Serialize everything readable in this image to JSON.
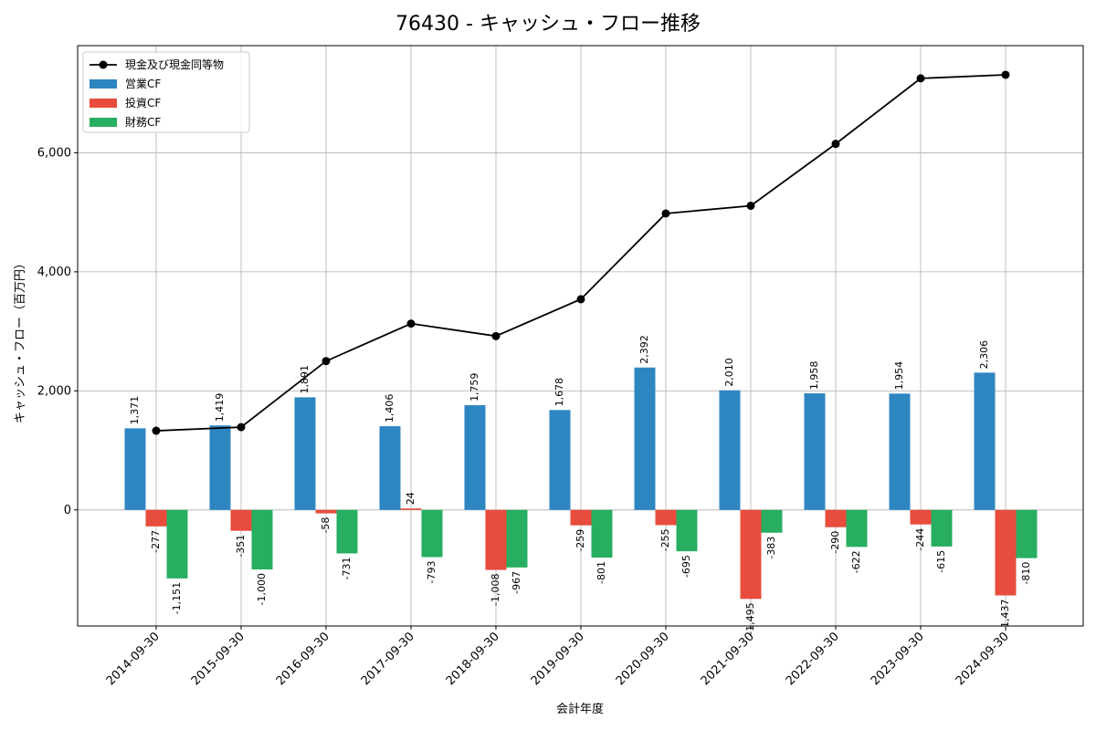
{
  "chart_data": {
    "type": "bar",
    "title": "76430 - キャッシュ・フロー推移",
    "xlabel": "会計年度",
    "ylabel": "キャッシュ・フロー（百万円）",
    "categories": [
      "2014-09-30",
      "2015-09-30",
      "2016-09-30",
      "2017-09-30",
      "2018-09-30",
      "2019-09-30",
      "2020-09-30",
      "2021-09-30",
      "2022-09-30",
      "2023-09-30",
      "2024-09-30"
    ],
    "ylim": [
      -1950,
      7800
    ],
    "yticks": [
      0,
      2000,
      4000,
      6000
    ],
    "ytick_labels": [
      "0",
      "2,000",
      "4,000",
      "6,000"
    ],
    "grid": true,
    "legend_position": "top-left",
    "series": [
      {
        "name": "営業CF",
        "kind": "bar",
        "color": "#2e86c1",
        "values": [
          1371,
          1419,
          1891,
          1406,
          1759,
          1678,
          2392,
          2010,
          1958,
          1954,
          2306
        ],
        "labels": [
          "1,371",
          "1,419",
          "1,891",
          "1,406",
          "1,759",
          "1,678",
          "2,392",
          "2,010",
          "1,958",
          "1,954",
          "2,306"
        ]
      },
      {
        "name": "投資CF",
        "kind": "bar",
        "color": "#e74c3c",
        "values": [
          -277,
          -351,
          -58,
          24,
          -1008,
          -259,
          -255,
          -1495,
          -290,
          -244,
          -1437
        ],
        "labels": [
          "-277",
          "-351",
          "-58",
          "24",
          "-1,008",
          "-259",
          "-255",
          "-1,495",
          "-290",
          "-244",
          "-1,437"
        ]
      },
      {
        "name": "財務CF",
        "kind": "bar",
        "color": "#27ae60",
        "values": [
          -1151,
          -1000,
          -731,
          -793,
          -967,
          -801,
          -695,
          -383,
          -622,
          -615,
          -810
        ],
        "labels": [
          "-1,151",
          "-1,000",
          "-731",
          "-793",
          "-967",
          "-801",
          "-695",
          "-383",
          "-622",
          "-615",
          "-810"
        ]
      },
      {
        "name": "現金及び現金同等物",
        "kind": "line",
        "color": "#000000",
        "values": [
          1330,
          1390,
          2500,
          3130,
          2920,
          3540,
          4980,
          5110,
          6150,
          7250,
          7310
        ]
      }
    ]
  }
}
